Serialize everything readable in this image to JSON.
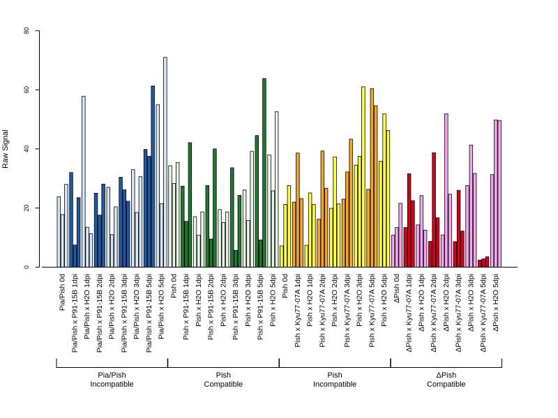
{
  "chart_data": {
    "type": "bar",
    "ylabel": "Raw Signal",
    "ylim": [
      0,
      80
    ],
    "yticks": [
      0,
      20,
      40,
      60,
      80
    ],
    "grid": false,
    "colors": {
      "light_blue": "#d6e6f5",
      "dark_blue": "#1f5aa6",
      "light_green": "#e6f5e1",
      "dark_green": "#1f7a30",
      "yellow": "#ffff33",
      "orange": "#f5a81c",
      "pink": "#f5a6f0",
      "red": "#d9001e"
    },
    "groups": [
      {
        "label_line1": "Pia/Pish",
        "label_line2": "Incompatible",
        "categories": [
          {
            "label": "Pia/Pish 0d",
            "color": "light_blue",
            "values": [
              23.8,
              17.8,
              28.0
            ]
          },
          {
            "label": "Pia/Pish x P91-15B 1dpi",
            "color": "dark_blue",
            "values": [
              32.0,
              7.5,
              23.5
            ]
          },
          {
            "label": "Pia/Pish x H2O 1dpi",
            "color": "light_blue",
            "values": [
              57.8,
              13.5,
              11.3
            ]
          },
          {
            "label": "Pia/Pish x P91-15B 2dpi",
            "color": "dark_blue",
            "values": [
              25.0,
              17.6,
              28.1
            ]
          },
          {
            "label": "Pia/Pish x H2O 2dpi",
            "color": "light_blue",
            "values": [
              27.0,
              11.0,
              20.4
            ]
          },
          {
            "label": "Pia/Pish x P91-15B 3dpi",
            "color": "dark_blue",
            "values": [
              30.4,
              26.2,
              22.3
            ]
          },
          {
            "label": "Pia/Pish x H2O 3dpi",
            "color": "light_blue",
            "values": [
              33.0,
              18.5,
              30.6
            ]
          },
          {
            "label": "Pia/Pish x P91-15B 5dpi",
            "color": "dark_blue",
            "values": [
              39.8,
              37.5,
              61.3
            ]
          },
          {
            "label": "Pia/Pish x H2O 5dpi",
            "color": "light_blue",
            "values": [
              55.0,
              21.5,
              71.0
            ]
          }
        ]
      },
      {
        "label_line1": "Pish",
        "label_line2": "Compatible",
        "categories": [
          {
            "label": "Pish 0d",
            "color": "light_green",
            "values": [
              34.3,
              28.3,
              35.4
            ]
          },
          {
            "label": "Pish x P91-15B 1dpi",
            "color": "dark_green",
            "values": [
              27.4,
              15.5,
              42.1
            ]
          },
          {
            "label": "Pish x H2O 1dpi",
            "color": "light_green",
            "values": [
              17.1,
              10.8,
              18.7
            ]
          },
          {
            "label": "Pish x P91-15B 2dpi",
            "color": "dark_green",
            "values": [
              27.6,
              9.5,
              40.0
            ]
          },
          {
            "label": "Pish x H2O 2dpi",
            "color": "light_green",
            "values": [
              19.5,
              15.1,
              18.7
            ]
          },
          {
            "label": "Pish x P91-15B 3dpi",
            "color": "dark_green",
            "values": [
              33.6,
              5.7,
              24.3
            ]
          },
          {
            "label": "Pish x H2O 3dpi",
            "color": "light_green",
            "values": [
              26.1,
              15.8,
              39.2
            ]
          },
          {
            "label": "Pish x P91-15B 5dpi",
            "color": "dark_green",
            "values": [
              44.5,
              9.2,
              63.8
            ]
          },
          {
            "label": "Pish x H2O 5dpi",
            "color": "light_green",
            "values": [
              38.0,
              25.8,
              52.6
            ]
          }
        ]
      },
      {
        "label_line1": "Pish",
        "label_line2": "Incompatible",
        "categories": [
          {
            "label": "Pish 0d",
            "color": "yellow",
            "values": [
              7.2,
              21.2,
              27.6
            ]
          },
          {
            "label": "Pish x Kyu77-07A 1dpi",
            "color": "orange",
            "values": [
              22.0,
              38.6,
              23.2
            ]
          },
          {
            "label": "Pish x H2O 1dpi",
            "color": "yellow",
            "values": [
              7.4,
              25.1,
              21.2
            ]
          },
          {
            "label": "Pish x Kyu77-07A 2dpi",
            "color": "orange",
            "values": [
              16.2,
              39.3,
              26.7
            ]
          },
          {
            "label": "Pish x H2O 2dpi",
            "color": "yellow",
            "values": [
              19.9,
              37.3,
              21.4
            ]
          },
          {
            "label": "Pish x Kyu77-07A 3dpi",
            "color": "orange",
            "values": [
              23.0,
              32.2,
              43.3
            ]
          },
          {
            "label": "Pish x H2O 3dpi",
            "color": "yellow",
            "values": [
              34.5,
              37.5,
              61.0
            ]
          },
          {
            "label": "Pish x Kyu77-07A 5dpi",
            "color": "orange",
            "values": [
              26.3,
              60.4,
              54.6
            ]
          },
          {
            "label": "Pish x H2O 5dpi",
            "color": "yellow",
            "values": [
              35.8,
              51.9,
              46.2
            ]
          }
        ]
      },
      {
        "label_line1": "ΔPish",
        "label_line2": "Compatible",
        "categories": [
          {
            "label": "ΔPish 0d",
            "color": "pink",
            "values": [
              10.8,
              13.4,
              21.6
            ]
          },
          {
            "label": "ΔPish x Kyu77-07A 1dpi",
            "color": "red",
            "values": [
              13.4,
              31.6,
              22.5
            ]
          },
          {
            "label": "ΔPish x H2O 1dpi",
            "color": "pink",
            "values": [
              14.3,
              24.2,
              12.5
            ]
          },
          {
            "label": "ΔPish x Kyu77-07A 2dpi",
            "color": "red",
            "values": [
              8.7,
              38.7,
              16.7
            ]
          },
          {
            "label": "ΔPish x H2O 2dpi",
            "color": "pink",
            "values": [
              10.9,
              51.9,
              24.7
            ]
          },
          {
            "label": "ΔPish x Kyu77-07A 3dpi",
            "color": "red",
            "values": [
              8.6,
              26.0,
              12.2
            ]
          },
          {
            "label": "ΔPish x H2O 3dpi",
            "color": "pink",
            "values": [
              27.6,
              41.3,
              31.7
            ]
          },
          {
            "label": "ΔPish x Kyu77-07A 5dpi",
            "color": "red",
            "values": [
              2.4,
              2.8,
              3.5
            ]
          },
          {
            "label": "ΔPish x H2O 5dpi",
            "color": "pink",
            "values": [
              31.3,
              49.8,
              49.6
            ]
          }
        ]
      }
    ]
  }
}
